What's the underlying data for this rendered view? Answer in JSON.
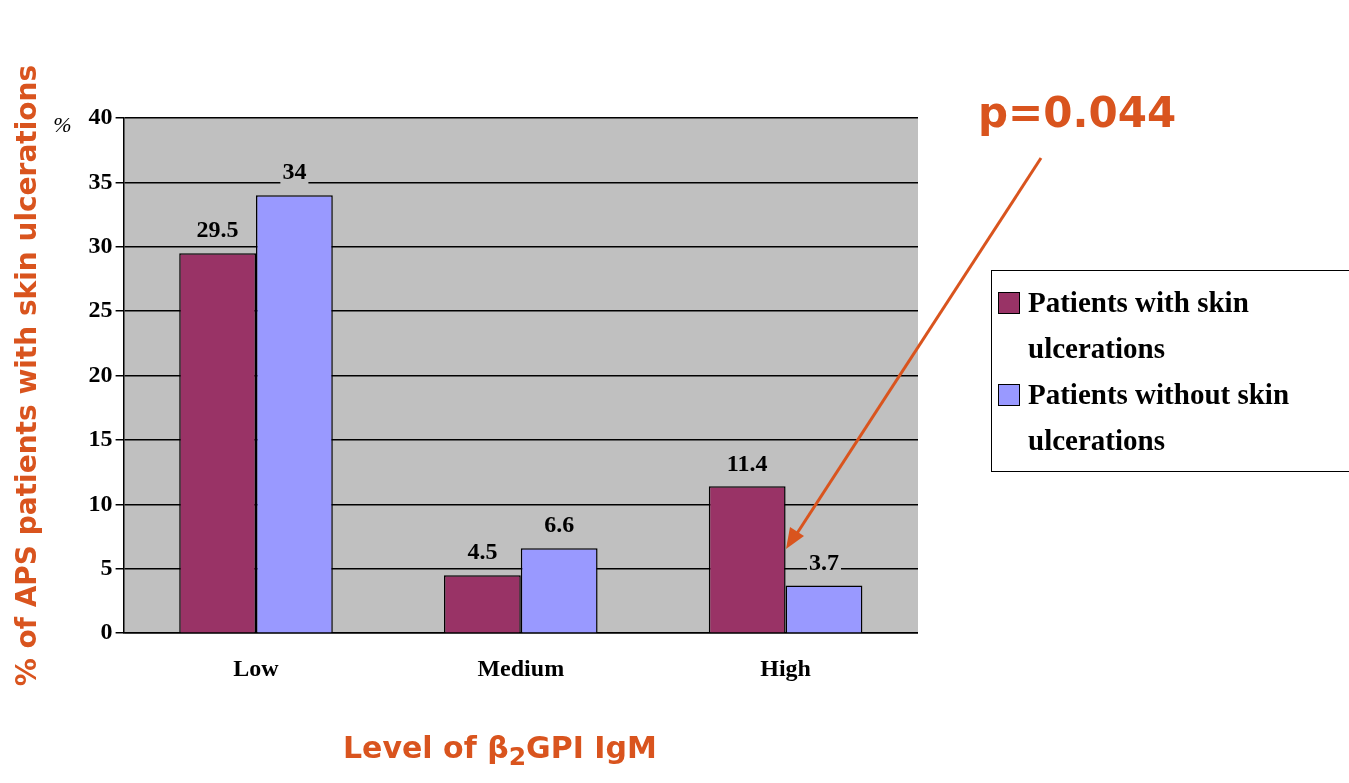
{
  "chart_data": {
    "type": "bar",
    "xlabel": "Level of β$_{2}$GPI IgM",
    "ylabel": "% of APS patients with skin ulcerations",
    "categories": [
      "Low",
      "Medium",
      "High"
    ],
    "series": [
      {
        "name": "Patients with skin ulcerations",
        "color": "#993366",
        "values": [
          29.5,
          4.5,
          11.4
        ]
      },
      {
        "name": "Patients without skin ulcerations",
        "color": "#9999ff",
        "values": [
          34,
          6.6,
          3.7
        ]
      }
    ],
    "ylim": [
      0,
      40
    ],
    "yticks": [
      0,
      5,
      10,
      15,
      20,
      25,
      30,
      35,
      40
    ],
    "grid": "y",
    "legend": "right",
    "data_labels": true,
    "annotations": [
      "%",
      "p=0.044"
    ]
  }
}
